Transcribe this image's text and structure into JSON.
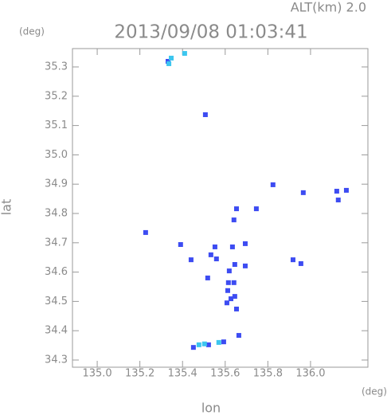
{
  "chart_data": {
    "type": "scatter",
    "title": "2013/09/08 01:03:41",
    "subtitle": "ALT(km) 2.0",
    "x_unit": "(deg)",
    "y_unit": "(deg)",
    "x_label": "lon",
    "y_label": "lat",
    "xlim": [
      134.884,
      136.269
    ],
    "ylim": [
      34.2755,
      35.3625
    ],
    "xticks": [
      {
        "value": 135.0,
        "label": "135.0"
      },
      135.2,
      135.4,
      135.6,
      135.8,
      {
        "value": 136.0,
        "label": "136.0"
      }
    ],
    "yticks": [
      34.3,
      34.4,
      34.5,
      34.6,
      34.7,
      34.8,
      34.9,
      {
        "value": 35.0,
        "label": "35.0"
      },
      35.1,
      35.2,
      35.3
    ],
    "series": [
      {
        "color": "#3d4cf2",
        "x": [
          135.507,
          135.332,
          136.168,
          136.123,
          136.13,
          135.824,
          135.966,
          135.746,
          135.653,
          135.641,
          135.227,
          135.391,
          135.44,
          135.552,
          135.533,
          135.559,
          135.634,
          135.694,
          135.918,
          135.955,
          135.645,
          135.694,
          135.619,
          135.518,
          135.615,
          135.641,
          135.612,
          135.627,
          135.608,
          135.645,
          135.653,
          135.664,
          135.451,
          135.522,
          135.593
        ],
        "y": [
          35.137,
          35.319,
          34.879,
          34.876,
          34.846,
          34.898,
          34.871,
          34.816,
          34.816,
          34.778,
          34.735,
          34.694,
          34.642,
          34.686,
          34.659,
          34.645,
          34.686,
          34.697,
          34.642,
          34.629,
          34.626,
          34.621,
          34.604,
          34.58,
          34.564,
          34.564,
          34.537,
          34.509,
          34.495,
          34.517,
          34.474,
          34.384,
          34.343,
          34.352,
          34.362
        ]
      },
      {
        "color": "#3cc6ef",
        "x": [
          135.347,
          135.336,
          135.41,
          135.477,
          135.503,
          135.57
        ],
        "y": [
          35.33,
          35.311,
          35.346,
          34.352,
          34.355,
          34.36
        ]
      }
    ]
  }
}
